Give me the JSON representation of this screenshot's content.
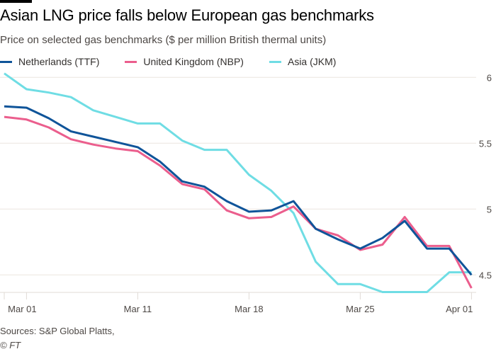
{
  "header": {
    "title": "Asian LNG price falls below European gas benchmarks",
    "subtitle": "Price on selected gas benchmarks ($ per million British thermal units)"
  },
  "footer": {
    "source": "Sources: S&P Global Platts,",
    "copyright": "© FT"
  },
  "chart_data": {
    "type": "line",
    "title": "Asian LNG price falls below European gas benchmarks",
    "subtitle": "Price on selected gas benchmarks ($ per million British thermal units)",
    "xlabel": "",
    "ylabel": "$ per million British thermal units",
    "x_index": [
      0,
      1,
      2,
      3,
      4,
      5,
      6,
      7,
      8,
      9,
      10,
      11,
      12,
      13,
      14,
      15,
      16,
      17,
      18,
      19,
      20,
      21
    ],
    "x_ticks": [
      {
        "index": 0,
        "label": ""
      },
      {
        "index": 1,
        "label": "Mar 01"
      },
      {
        "index": 6,
        "label": "Mar 11"
      },
      {
        "index": 11,
        "label": "Mar 18"
      },
      {
        "index": 16,
        "label": "Mar 25"
      },
      {
        "index": 21,
        "label": "Apr 01"
      }
    ],
    "y_ticks": [
      4.5,
      5,
      5.5,
      6
    ],
    "y_tick_labels": [
      "4.5",
      "5",
      "5.5",
      "6"
    ],
    "ylim": [
      4.37,
      6.03
    ],
    "grid": true,
    "legend_position": "top-left",
    "series": [
      {
        "name": "Netherlands (TTF)",
        "color": "#0f5499",
        "values": [
          5.78,
          5.77,
          5.69,
          5.59,
          5.55,
          5.51,
          5.47,
          5.36,
          5.21,
          5.17,
          5.06,
          4.98,
          4.99,
          5.06,
          4.85,
          4.77,
          4.7,
          4.78,
          4.91,
          4.7,
          4.7,
          4.5
        ]
      },
      {
        "name": "United Kingdom (NBP)",
        "color": "#eb5e8d",
        "values": [
          5.7,
          5.68,
          5.62,
          5.53,
          5.49,
          5.46,
          5.44,
          5.33,
          5.19,
          5.15,
          4.99,
          4.93,
          4.94,
          5.02,
          4.85,
          4.8,
          4.69,
          4.73,
          4.94,
          4.72,
          4.72,
          4.4
        ]
      },
      {
        "name": "Asia (JKM)",
        "color": "#6fdde4",
        "values": [
          6.03,
          5.91,
          5.885,
          5.85,
          5.75,
          5.7,
          5.65,
          5.65,
          5.52,
          5.45,
          5.45,
          5.26,
          5.14,
          4.97,
          4.6,
          4.43,
          4.43,
          4.37,
          4.37,
          4.37,
          4.52,
          4.52
        ]
      }
    ]
  }
}
